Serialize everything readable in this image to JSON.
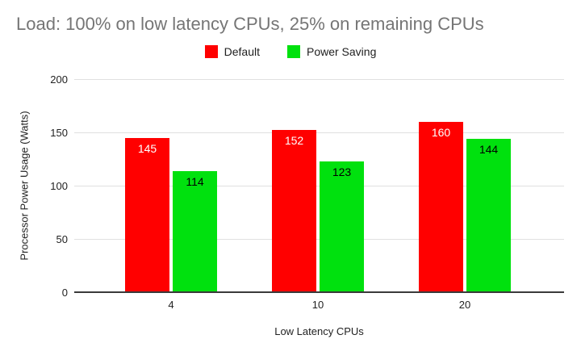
{
  "chart_data": {
    "type": "bar",
    "title": "Load: 100% on low latency CPUs, 25% on remaining CPUs",
    "xlabel": "Low Latency CPUs",
    "ylabel": "Processor Power Usage (Watts)",
    "categories": [
      "4",
      "10",
      "20"
    ],
    "series": [
      {
        "name": "Default",
        "color": "#ff0000",
        "label_color": "#ffffff",
        "values": [
          145,
          152,
          160
        ]
      },
      {
        "name": "Power Saving",
        "color": "#00e10e",
        "label_color": "#000000",
        "values": [
          114,
          123,
          144
        ]
      }
    ],
    "ylim": [
      0,
      200
    ],
    "yticks": [
      0,
      50,
      100,
      150,
      200
    ],
    "grid": true,
    "legend_position": "top",
    "title_color": "#757575",
    "axis_text_color": "#222222",
    "gridline_color": "#e0e0e0"
  }
}
